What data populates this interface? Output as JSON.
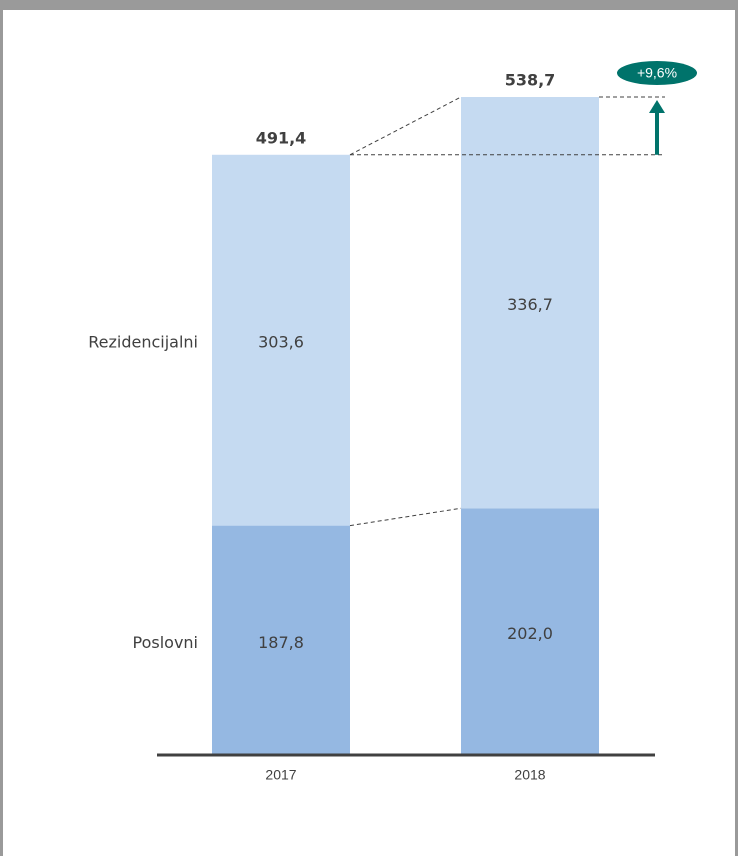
{
  "chart_data": {
    "type": "stacked-bar",
    "categories": [
      "2017",
      "2018"
    ],
    "series": [
      {
        "name": "Poslovni",
        "color": "#95b8e2",
        "values": [
          187.8,
          202.0
        ],
        "value_labels": [
          "187,8",
          "202,0"
        ]
      },
      {
        "name": "Rezidencijalni",
        "color": "#c5daf1",
        "values": [
          303.6,
          336.7
        ],
        "value_labels": [
          "303,6",
          "336,7"
        ]
      }
    ],
    "totals": [
      491.4,
      538.7
    ],
    "total_labels": [
      "491,4",
      "538,7"
    ],
    "annotation": "+9,6%",
    "annotation_color": "#00736b"
  }
}
